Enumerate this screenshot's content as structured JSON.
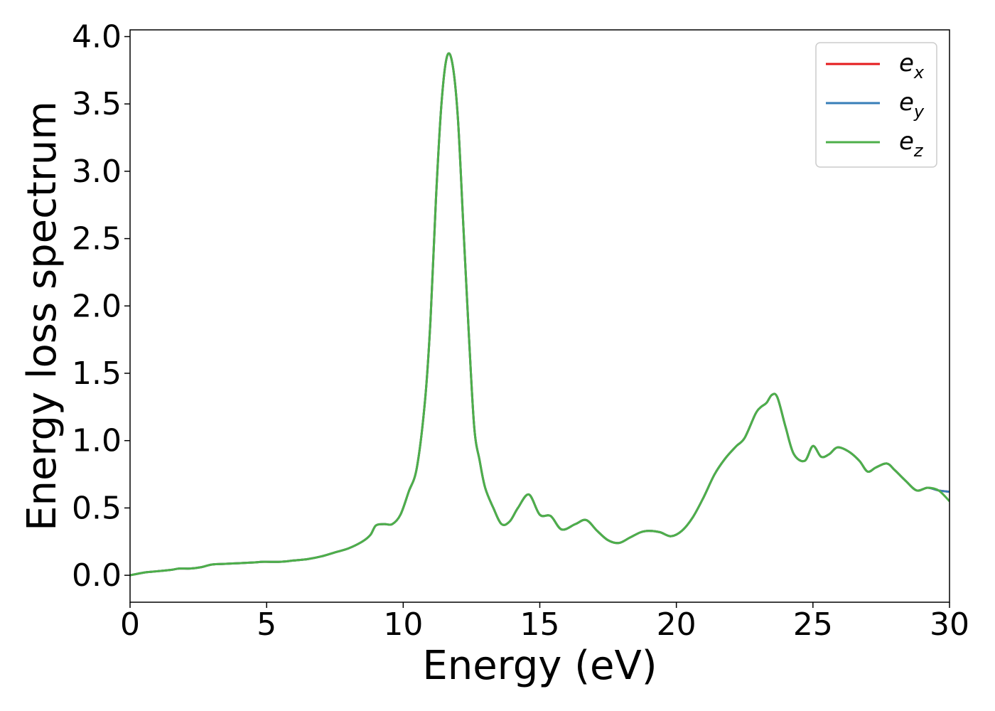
{
  "chart_data": {
    "type": "line",
    "title": "",
    "xlabel": "Energy (eV)",
    "ylabel": "Energy loss spectrum",
    "xlim": [
      0,
      30
    ],
    "ylim": [
      -0.2,
      4.05
    ],
    "x_ticks": [
      0,
      5,
      10,
      15,
      20,
      25,
      30
    ],
    "x_tick_labels": [
      "0",
      "5",
      "10",
      "15",
      "20",
      "25",
      "30"
    ],
    "y_ticks": [
      0.0,
      0.5,
      1.0,
      1.5,
      2.0,
      2.5,
      3.0,
      3.5,
      4.0
    ],
    "y_tick_labels": [
      "0.0",
      "0.5",
      "1.0",
      "1.5",
      "2.0",
      "2.5",
      "3.0",
      "3.5",
      "4.0"
    ],
    "grid": false,
    "legend_position": "top-right",
    "x": [
      0,
      0.5,
      1.0,
      1.5,
      1.8,
      2.2,
      2.6,
      3.0,
      3.5,
      4.0,
      4.5,
      4.9,
      5.5,
      6.0,
      6.5,
      7.0,
      7.5,
      8.0,
      8.5,
      8.8,
      9.0,
      9.3,
      9.6,
      9.9,
      10.2,
      10.5,
      10.8,
      11.0,
      11.2,
      11.4,
      11.6,
      11.8,
      12.0,
      12.2,
      12.4,
      12.6,
      12.8,
      13.0,
      13.3,
      13.6,
      13.9,
      14.2,
      14.6,
      15.0,
      15.4,
      15.8,
      16.3,
      16.7,
      17.1,
      17.5,
      17.9,
      18.3,
      18.7,
      19.0,
      19.4,
      19.8,
      20.2,
      20.6,
      21.0,
      21.4,
      21.8,
      22.2,
      22.5,
      22.9,
      23.1,
      23.3,
      23.5,
      23.7,
      24.0,
      24.3,
      24.7,
      25.0,
      25.3,
      25.6,
      25.9,
      26.3,
      26.7,
      27.0,
      27.3,
      27.7,
      28.0,
      28.4,
      28.8,
      29.2,
      29.6,
      30.0
    ],
    "series": [
      {
        "name": "e_x",
        "color": "#e41a1c",
        "y": [
          0.0,
          0.02,
          0.03,
          0.04,
          0.05,
          0.05,
          0.06,
          0.08,
          0.085,
          0.09,
          0.095,
          0.1,
          0.1,
          0.11,
          0.12,
          0.14,
          0.17,
          0.2,
          0.25,
          0.3,
          0.37,
          0.38,
          0.38,
          0.45,
          0.62,
          0.8,
          1.3,
          1.9,
          2.8,
          3.5,
          3.85,
          3.8,
          3.4,
          2.6,
          1.8,
          1.1,
          0.85,
          0.65,
          0.5,
          0.38,
          0.4,
          0.5,
          0.6,
          0.45,
          0.44,
          0.34,
          0.38,
          0.41,
          0.33,
          0.26,
          0.24,
          0.28,
          0.32,
          0.33,
          0.32,
          0.29,
          0.33,
          0.43,
          0.58,
          0.75,
          0.87,
          0.96,
          1.02,
          1.2,
          1.25,
          1.28,
          1.34,
          1.32,
          1.1,
          0.9,
          0.85,
          0.96,
          0.88,
          0.9,
          0.95,
          0.92,
          0.85,
          0.77,
          0.8,
          0.83,
          0.78,
          0.7,
          0.63,
          0.65,
          0.63,
          0.62
        ]
      },
      {
        "name": "e_y",
        "color": "#377eb8",
        "y": [
          0.0,
          0.02,
          0.03,
          0.04,
          0.05,
          0.05,
          0.06,
          0.08,
          0.085,
          0.09,
          0.095,
          0.1,
          0.1,
          0.11,
          0.12,
          0.14,
          0.17,
          0.2,
          0.25,
          0.3,
          0.37,
          0.38,
          0.38,
          0.45,
          0.62,
          0.8,
          1.3,
          1.9,
          2.8,
          3.5,
          3.85,
          3.8,
          3.4,
          2.6,
          1.8,
          1.1,
          0.85,
          0.65,
          0.5,
          0.38,
          0.4,
          0.5,
          0.6,
          0.45,
          0.44,
          0.34,
          0.38,
          0.41,
          0.33,
          0.26,
          0.24,
          0.28,
          0.32,
          0.33,
          0.32,
          0.29,
          0.33,
          0.43,
          0.58,
          0.75,
          0.87,
          0.96,
          1.02,
          1.2,
          1.25,
          1.28,
          1.34,
          1.32,
          1.1,
          0.9,
          0.85,
          0.96,
          0.88,
          0.9,
          0.95,
          0.92,
          0.85,
          0.77,
          0.8,
          0.83,
          0.78,
          0.7,
          0.63,
          0.65,
          0.63,
          0.62
        ]
      },
      {
        "name": "e_z",
        "color": "#4daf4a",
        "y": [
          0.0,
          0.02,
          0.03,
          0.04,
          0.05,
          0.05,
          0.06,
          0.08,
          0.085,
          0.09,
          0.095,
          0.1,
          0.1,
          0.11,
          0.12,
          0.14,
          0.17,
          0.2,
          0.25,
          0.3,
          0.37,
          0.38,
          0.38,
          0.45,
          0.62,
          0.8,
          1.3,
          1.9,
          2.8,
          3.5,
          3.85,
          3.8,
          3.4,
          2.6,
          1.8,
          1.1,
          0.85,
          0.65,
          0.5,
          0.38,
          0.4,
          0.5,
          0.6,
          0.45,
          0.44,
          0.34,
          0.38,
          0.41,
          0.33,
          0.26,
          0.24,
          0.28,
          0.32,
          0.33,
          0.32,
          0.29,
          0.33,
          0.43,
          0.58,
          0.75,
          0.87,
          0.96,
          1.02,
          1.2,
          1.25,
          1.28,
          1.34,
          1.32,
          1.1,
          0.9,
          0.85,
          0.96,
          0.88,
          0.9,
          0.95,
          0.92,
          0.85,
          0.77,
          0.8,
          0.83,
          0.78,
          0.7,
          0.63,
          0.65,
          0.63,
          0.55
        ]
      }
    ],
    "legend": [
      {
        "base": "e",
        "sub": "x",
        "color": "#e41a1c"
      },
      {
        "base": "e",
        "sub": "y",
        "color": "#377eb8"
      },
      {
        "base": "e",
        "sub": "z",
        "color": "#4daf4a"
      }
    ]
  }
}
